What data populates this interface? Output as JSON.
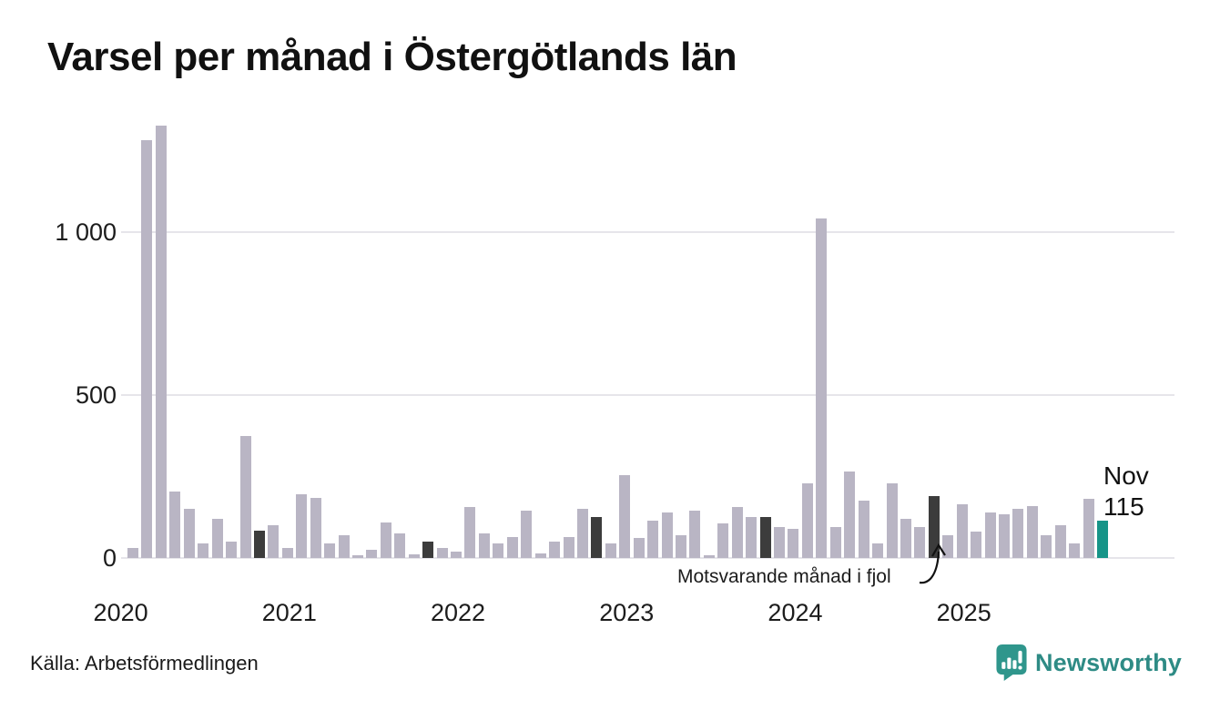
{
  "title": "Varsel per månad i Östergötlands län",
  "source": "Källa: Arbetsförmedlingen",
  "branding": {
    "name": "Newsworthy"
  },
  "annotation": {
    "text": "Motsvarande månad i fjol"
  },
  "current_point": {
    "label_month": "Nov",
    "label_value": "115"
  },
  "colors": {
    "bar": "#b9b5c4",
    "last_year_bar": "#3c3c3c",
    "current_bar": "#169488",
    "grid": "#e6e5ea",
    "brand": "#2e8b85"
  },
  "chart_data": {
    "type": "bar",
    "title": "Varsel per månad i Östergötlands län",
    "xlabel": "",
    "ylabel": "",
    "ylim": [
      0,
      1400
    ],
    "grid": "horizontal",
    "legend": "none",
    "yticks": [
      {
        "value": 0,
        "label": "0"
      },
      {
        "value": 500,
        "label": "500"
      },
      {
        "value": 1000,
        "label": "1 000"
      }
    ],
    "year_labels": [
      {
        "year": "2020",
        "month_index": 0
      },
      {
        "year": "2021",
        "month_index": 12
      },
      {
        "year": "2022",
        "month_index": 24
      },
      {
        "year": "2023",
        "month_index": 36
      },
      {
        "year": "2024",
        "month_index": 48
      },
      {
        "year": "2025",
        "month_index": 60
      }
    ],
    "months": [
      "jan 2020",
      "feb 2020",
      "mar 2020",
      "apr 2020",
      "maj 2020",
      "jun 2020",
      "jul 2020",
      "aug 2020",
      "sep 2020",
      "okt 2020",
      "nov 2020",
      "dec 2020",
      "jan 2021",
      "feb 2021",
      "mar 2021",
      "apr 2021",
      "maj 2021",
      "jun 2021",
      "jul 2021",
      "aug 2021",
      "sep 2021",
      "okt 2021",
      "nov 2021",
      "dec 2021",
      "jan 2022",
      "feb 2022",
      "mar 2022",
      "apr 2022",
      "maj 2022",
      "jun 2022",
      "jul 2022",
      "aug 2022",
      "sep 2022",
      "okt 2022",
      "nov 2022",
      "dec 2022",
      "jan 2023",
      "feb 2023",
      "mar 2023",
      "apr 2023",
      "maj 2023",
      "jun 2023",
      "jul 2023",
      "aug 2023",
      "sep 2023",
      "okt 2023",
      "nov 2023",
      "dec 2023",
      "jan 2024",
      "feb 2024",
      "mar 2024",
      "apr 2024",
      "maj 2024",
      "jun 2024",
      "jul 2024",
      "aug 2024",
      "sep 2024",
      "okt 2024",
      "nov 2024",
      "dec 2024",
      "jan 2025",
      "feb 2025",
      "mar 2025",
      "apr 2025",
      "maj 2025",
      "jun 2025",
      "jul 2025",
      "aug 2025",
      "sep 2025",
      "okt 2025",
      "nov 2025"
    ],
    "values": [
      0,
      30,
      1280,
      1325,
      205,
      150,
      45,
      120,
      50,
      375,
      85,
      100,
      30,
      195,
      185,
      45,
      70,
      8,
      25,
      110,
      75,
      10,
      50,
      30,
      20,
      155,
      75,
      45,
      65,
      145,
      15,
      50,
      65,
      150,
      125,
      45,
      255,
      60,
      115,
      140,
      70,
      145,
      8,
      105,
      155,
      125,
      125,
      95,
      90,
      228,
      1040,
      95,
      265,
      175,
      45,
      230,
      120,
      95,
      190,
      70,
      165,
      80,
      140,
      135,
      150,
      160,
      70,
      100,
      45,
      180,
      115
    ],
    "last_year_indices": [
      10,
      22,
      34,
      46,
      58
    ],
    "current_index": 70
  }
}
